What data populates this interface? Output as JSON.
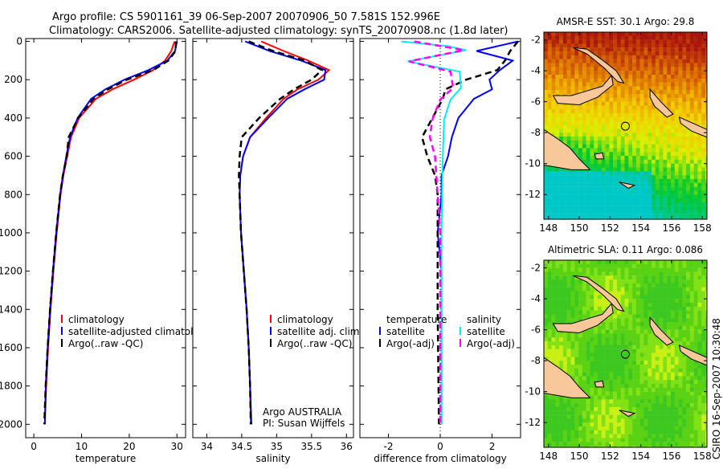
{
  "title_line1": "Argo profile: CS 5901161_39 06-Sep-2007 20070906_50 7.581S 152.996E",
  "title_line2": "Climatology: CARS2006. Satellite-adjusted climatology: synTS_20070908.nc (1.8d later)",
  "side_label": "CSIRO 16-Sep-2007 10:30:48",
  "credit_line1": "Argo AUSTRALIA",
  "credit_line2": "PI: Susan Wijffels",
  "chart_data": [
    {
      "type": "line",
      "id": "temperature",
      "xlabel": "temperature",
      "ylabel": "",
      "xlim": [
        -1.7,
        31.8
      ],
      "ylim": [
        2070,
        -15
      ],
      "xticks": [
        0,
        10,
        20,
        30
      ],
      "yticks": [
        0,
        200,
        400,
        600,
        800,
        1000,
        1200,
        1400,
        1600,
        1800,
        2000
      ],
      "legend": [
        "climatology",
        "satellite-adjusted climatolo",
        "Argo(..raw -QC)"
      ],
      "series": [
        {
          "name": "climatology",
          "color": "#ff0000",
          "dash": false,
          "points": [
            [
              29.5,
              0
            ],
            [
              28.8,
              50
            ],
            [
              27.5,
              100
            ],
            [
              25,
              150
            ],
            [
              21,
              200
            ],
            [
              16.5,
              250
            ],
            [
              13,
              300
            ],
            [
              9.5,
              400
            ],
            [
              7.8,
              500
            ],
            [
              7,
              600
            ],
            [
              6.2,
              700
            ],
            [
              5.6,
              800
            ],
            [
              4.8,
              1000
            ],
            [
              4.1,
              1200
            ],
            [
              3.5,
              1400
            ],
            [
              3.0,
              1600
            ],
            [
              2.6,
              1800
            ],
            [
              2.3,
              2000
            ]
          ]
        },
        {
          "name": "satellite-adjusted climatology",
          "color": "#0000ff",
          "dash": false,
          "points": [
            [
              30.0,
              0
            ],
            [
              29.6,
              50
            ],
            [
              28,
              100
            ],
            [
              24,
              150
            ],
            [
              19,
              200
            ],
            [
              15,
              250
            ],
            [
              12,
              300
            ],
            [
              9.2,
              400
            ],
            [
              7.6,
              500
            ],
            [
              6.8,
              600
            ],
            [
              6.1,
              700
            ],
            [
              5.5,
              800
            ],
            [
              4.7,
              1000
            ],
            [
              4.0,
              1200
            ],
            [
              3.4,
              1400
            ],
            [
              2.9,
              1600
            ],
            [
              2.5,
              1800
            ],
            [
              2.3,
              2000
            ]
          ]
        },
        {
          "name": "Argo(..raw -QC)",
          "color": "#000000",
          "dash": true,
          "points": [
            [
              29.8,
              0
            ],
            [
              29.7,
              50
            ],
            [
              28.2,
              100
            ],
            [
              25,
              150
            ],
            [
              19.5,
              200
            ],
            [
              15.5,
              250
            ],
            [
              12.5,
              300
            ],
            [
              9.3,
              400
            ],
            [
              7.3,
              500
            ],
            [
              6.9,
              600
            ],
            [
              6.1,
              700
            ],
            [
              5.5,
              800
            ],
            [
              4.7,
              1000
            ],
            [
              4.0,
              1200
            ],
            [
              3.4,
              1400
            ],
            [
              2.9,
              1600
            ],
            [
              2.5,
              1800
            ],
            [
              2.2,
              2000
            ]
          ]
        }
      ]
    },
    {
      "type": "line",
      "id": "salinity",
      "xlabel": "salinity",
      "xlim": [
        33.8,
        36.1
      ],
      "ylim": [
        2070,
        -15
      ],
      "xticks": [
        34,
        34.5,
        35,
        35.5,
        36
      ],
      "legend": [
        "climatology",
        "satellite adj. clim.",
        "Argo(..raw -QC)"
      ],
      "series": [
        {
          "name": "climatology",
          "color": "#ff0000",
          "dash": false,
          "points": [
            [
              34.78,
              0
            ],
            [
              35.1,
              50
            ],
            [
              35.45,
              100
            ],
            [
              35.75,
              150
            ],
            [
              35.6,
              200
            ],
            [
              35.3,
              250
            ],
            [
              35.1,
              300
            ],
            [
              34.85,
              400
            ],
            [
              34.62,
              500
            ],
            [
              34.52,
              600
            ],
            [
              34.48,
              700
            ],
            [
              34.47,
              800
            ],
            [
              34.49,
              1000
            ],
            [
              34.53,
              1200
            ],
            [
              34.57,
              1400
            ],
            [
              34.6,
              1600
            ],
            [
              34.62,
              1800
            ],
            [
              34.63,
              2000
            ]
          ]
        },
        {
          "name": "satellite adj. clim.",
          "color": "#0000ff",
          "dash": false,
          "points": [
            [
              34.55,
              0
            ],
            [
              34.9,
              50
            ],
            [
              35.35,
              100
            ],
            [
              35.7,
              150
            ],
            [
              35.68,
              200
            ],
            [
              35.4,
              250
            ],
            [
              35.15,
              300
            ],
            [
              34.88,
              400
            ],
            [
              34.62,
              500
            ],
            [
              34.52,
              600
            ],
            [
              34.48,
              700
            ],
            [
              34.47,
              800
            ],
            [
              34.49,
              1000
            ],
            [
              34.53,
              1200
            ],
            [
              34.57,
              1400
            ],
            [
              34.6,
              1600
            ],
            [
              34.62,
              1800
            ],
            [
              34.64,
              2000
            ]
          ]
        },
        {
          "name": "Argo(..raw -QC)",
          "color": "#000000",
          "dash": true,
          "points": [
            [
              34.6,
              0
            ],
            [
              34.95,
              50
            ],
            [
              35.4,
              100
            ],
            [
              35.65,
              150
            ],
            [
              35.5,
              200
            ],
            [
              35.25,
              250
            ],
            [
              35.05,
              300
            ],
            [
              34.75,
              400
            ],
            [
              34.5,
              500
            ],
            [
              34.47,
              600
            ],
            [
              34.46,
              700
            ],
            [
              34.47,
              800
            ],
            [
              34.49,
              1000
            ],
            [
              34.53,
              1200
            ],
            [
              34.57,
              1400
            ],
            [
              34.6,
              1600
            ],
            [
              34.62,
              1800
            ],
            [
              34.63,
              2000
            ]
          ]
        }
      ]
    },
    {
      "type": "line",
      "id": "difference",
      "xlabel": "difference from climatology",
      "xlim": [
        -3.1,
        3.1
      ],
      "ylim": [
        2070,
        -15
      ],
      "xticks": [
        -2,
        0,
        2
      ],
      "legend_headers": [
        "temperature",
        "salinity"
      ],
      "legend": [
        "satellite",
        "Argo(-adj)",
        "satellite",
        "Argo(-adj)"
      ],
      "series": [
        {
          "name": "temperature satellite",
          "color": "#0000ff",
          "dash": false,
          "points": [
            [
              3.0,
              0
            ],
            [
              1.4,
              50
            ],
            [
              2.8,
              100
            ],
            [
              2.3,
              150
            ],
            [
              1.9,
              200
            ],
            [
              2.0,
              250
            ],
            [
              1.3,
              300
            ],
            [
              0.7,
              400
            ],
            [
              0.45,
              500
            ],
            [
              0.3,
              600
            ],
            [
              0.05,
              700
            ],
            [
              0.05,
              800
            ],
            [
              -0.1,
              1000
            ],
            [
              0.05,
              1200
            ],
            [
              0.05,
              1600
            ],
            [
              0.05,
              2000
            ]
          ]
        },
        {
          "name": "temperature Argo(-adj)",
          "color": "#000000",
          "dash": true,
          "points": [
            [
              3.0,
              0
            ],
            [
              2.7,
              50
            ],
            [
              2.5,
              100
            ],
            [
              2.2,
              150
            ],
            [
              1.0,
              200
            ],
            [
              0.2,
              250
            ],
            [
              0.1,
              300
            ],
            [
              -0.3,
              400
            ],
            [
              -0.7,
              500
            ],
            [
              -0.5,
              600
            ],
            [
              -0.2,
              700
            ],
            [
              -0.1,
              800
            ],
            [
              -0.1,
              1000
            ],
            [
              -0.1,
              1400
            ],
            [
              -0.05,
              2000
            ]
          ]
        },
        {
          "name": "salinity satellite",
          "color": "#00eeee",
          "dash": false,
          "points": [
            [
              -1.5,
              0
            ],
            [
              0.3,
              25
            ],
            [
              1.0,
              46
            ],
            [
              -1.25,
              104
            ],
            [
              0.75,
              158
            ],
            [
              0.8,
              242
            ],
            [
              0.4,
              304
            ],
            [
              0.15,
              408
            ],
            [
              0.1,
              600
            ],
            [
              0.05,
              1000
            ],
            [
              0.05,
              2000
            ]
          ]
        },
        {
          "name": "salinity Argo(-adj)",
          "color": "#ff00ff",
          "dash": true,
          "points": [
            [
              -1.0,
              0
            ],
            [
              0.9,
              46
            ],
            [
              -1.2,
              104
            ],
            [
              0.4,
              158
            ],
            [
              0.5,
              242
            ],
            [
              0.0,
              304
            ],
            [
              -0.3,
              408
            ],
            [
              -0.4,
              500
            ],
            [
              -0.2,
              600
            ],
            [
              -0.1,
              800
            ],
            [
              0.0,
              1000
            ],
            [
              0.0,
              2000
            ]
          ]
        }
      ]
    },
    {
      "type": "heatmap",
      "id": "sst-map",
      "title": "AMSR-E SST: 30.1 Argo: 29.8",
      "xlim": [
        147.7,
        158.3
      ],
      "ylim": [
        -13.6,
        -1.5
      ],
      "xticks": [
        148,
        150,
        152,
        154,
        156,
        158
      ],
      "yticks": [
        -2,
        -4,
        -6,
        -8,
        -10,
        -12
      ],
      "marker": [
        152.996,
        -7.581
      ]
    },
    {
      "type": "heatmap",
      "id": "sla-map",
      "title": "Altimetric SLA: 0.11 Argo: 0.086",
      "xlim": [
        147.7,
        158.3
      ],
      "ylim": [
        -13.6,
        -1.5
      ],
      "xticks": [
        148,
        150,
        152,
        154,
        156,
        158
      ],
      "yticks": [
        -2,
        -4,
        -6,
        -8,
        -10,
        -12
      ],
      "marker": [
        152.996,
        -7.581
      ]
    }
  ]
}
